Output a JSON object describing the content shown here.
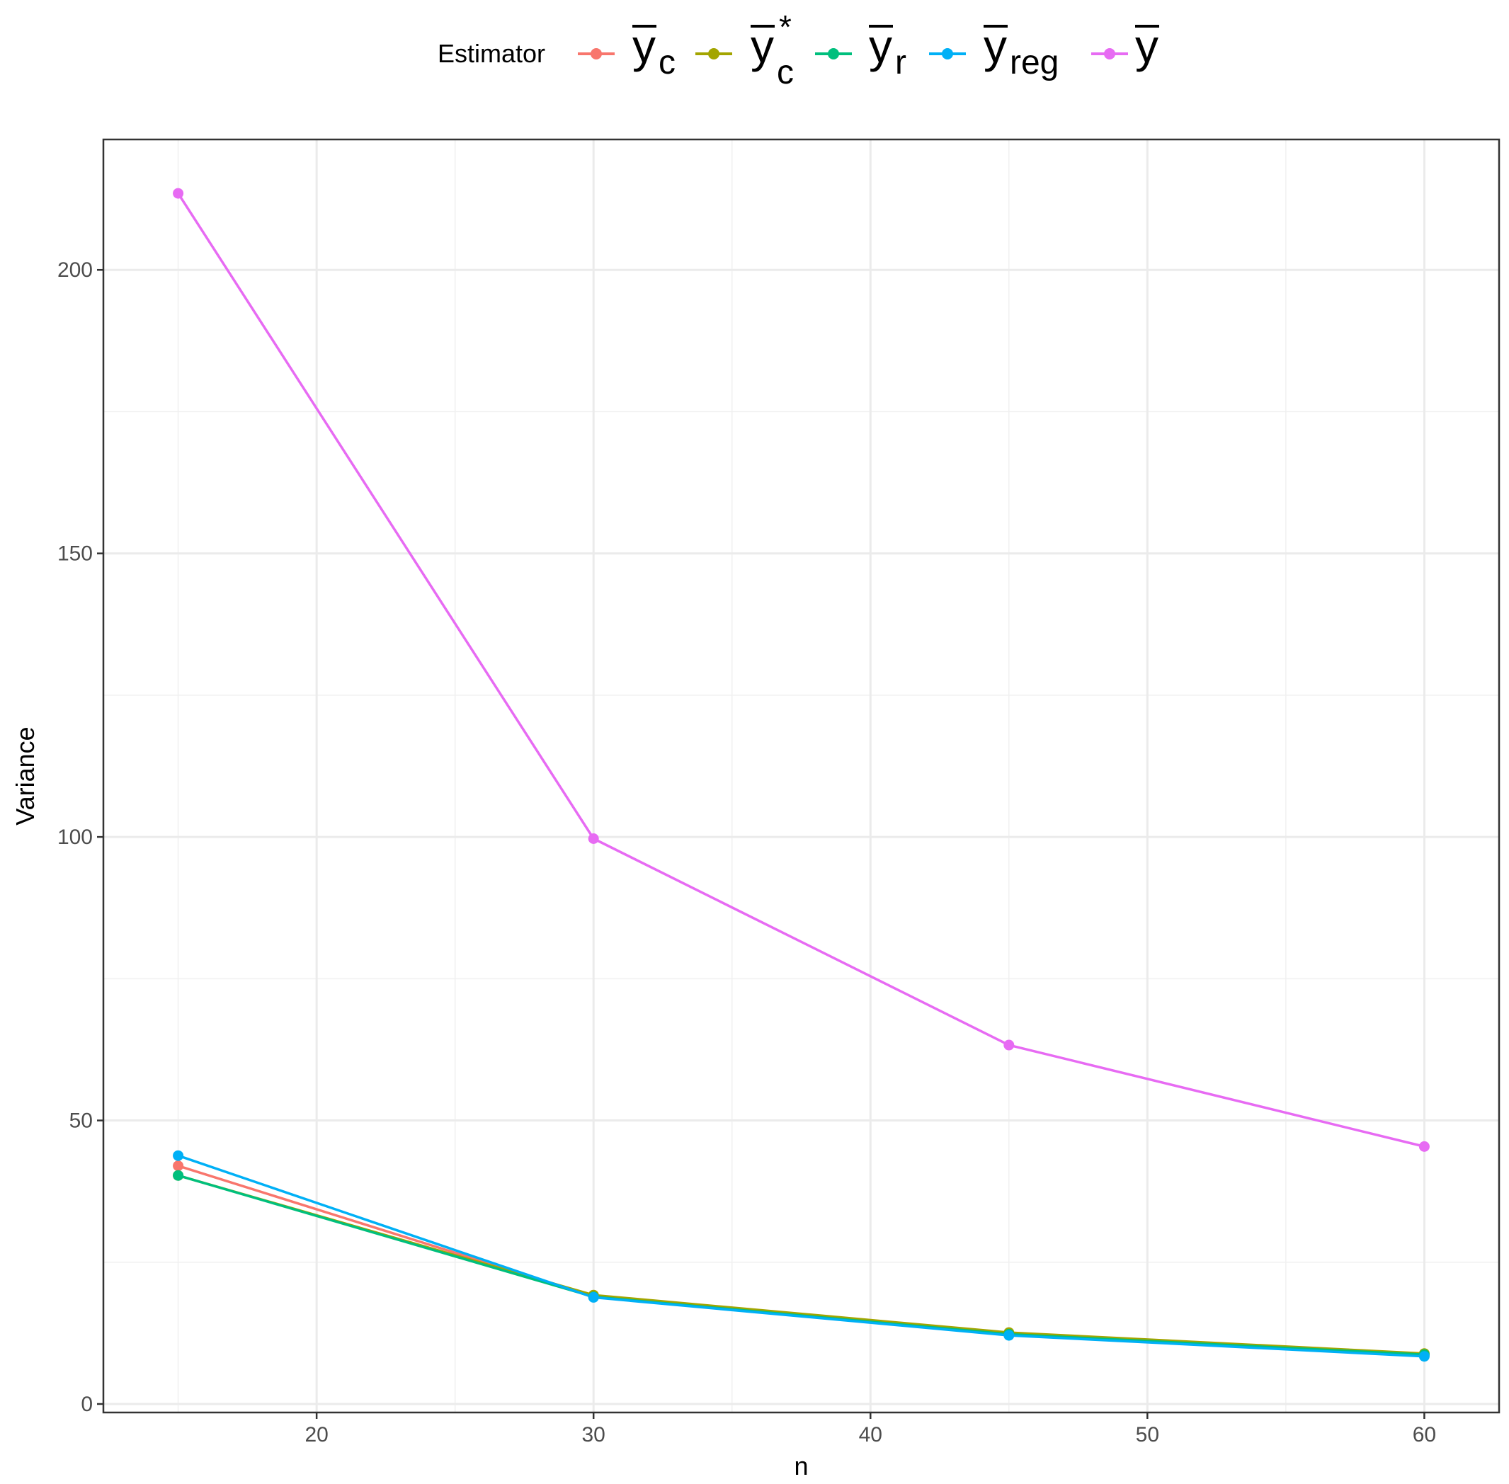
{
  "chart_data": {
    "type": "line",
    "title": "",
    "xlabel": "n",
    "ylabel": "Variance",
    "xlim": [
      12.3,
      62.7
    ],
    "ylim": [
      -1.5,
      223
    ],
    "x_ticks": [
      20,
      30,
      40,
      50,
      60
    ],
    "y_ticks": [
      0,
      50,
      100,
      150,
      200
    ],
    "grid": true,
    "legend": {
      "position": "top",
      "title": "Estimator",
      "entries": [
        {
          "base": "y",
          "sub": "c",
          "sup": ""
        },
        {
          "base": "y",
          "sub": "c",
          "sup": "*"
        },
        {
          "base": "y",
          "sub": "r",
          "sup": ""
        },
        {
          "base": "y",
          "sub": "reg",
          "sup": ""
        },
        {
          "base": "y",
          "sub": "",
          "sup": ""
        }
      ]
    },
    "x": [
      15,
      30,
      45,
      60
    ],
    "series": [
      {
        "color": "#F8766D",
        "values": [
          42.0,
          19.0,
          12.2,
          8.6
        ]
      },
      {
        "color": "#A3A500",
        "values": [
          40.3,
          19.2,
          12.6,
          8.9
        ]
      },
      {
        "color": "#00BF7D",
        "values": [
          40.3,
          18.9,
          12.3,
          8.7
        ]
      },
      {
        "color": "#00B0F6",
        "values": [
          43.8,
          18.8,
          12.1,
          8.4
        ]
      },
      {
        "color": "#E76BF3",
        "values": [
          213.5,
          99.7,
          63.3,
          45.4
        ]
      }
    ]
  }
}
